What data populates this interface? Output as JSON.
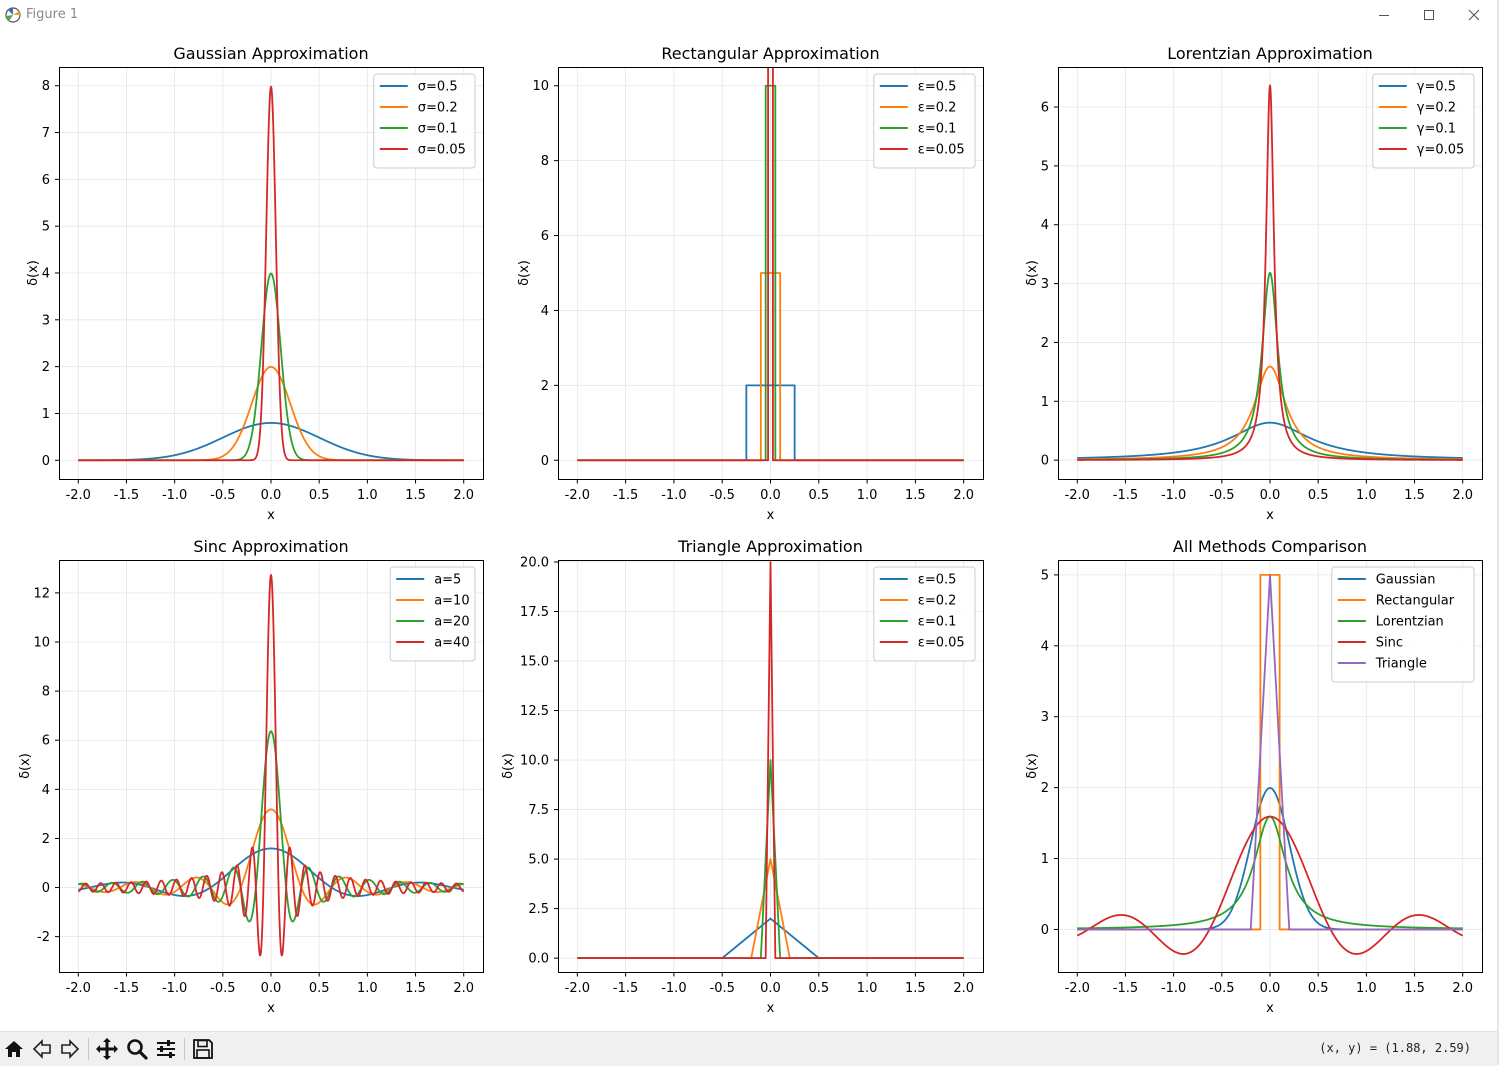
{
  "window": {
    "title": "Figure 1"
  },
  "toolbar": {
    "buttons": [
      {
        "icon": "home-icon"
      },
      {
        "icon": "back-arrow-icon"
      },
      {
        "icon": "forward-arrow-icon"
      },
      {
        "icon": "pan-icon"
      },
      {
        "icon": "zoom-icon"
      },
      {
        "icon": "configure-subplots-icon"
      },
      {
        "icon": "save-icon"
      }
    ],
    "coords": "(x, y) = (1.88, 2.59)"
  },
  "colors": {
    "c0": "#1f77b4",
    "c1": "#ff7f0e",
    "c2": "#2ca02c",
    "c3": "#d62728",
    "c4": "#9467bd"
  },
  "chart_data": [
    {
      "type": "line",
      "title": "Gaussian Approximation",
      "xlabel": "x",
      "ylabel": "δ(x)",
      "xlim": [
        -2.2,
        2.2
      ],
      "ylim": [
        -0.4,
        8.4
      ],
      "xticks": [
        -2.0,
        -1.5,
        -1.0,
        -0.5,
        0.0,
        0.5,
        1.0,
        1.5,
        2.0
      ],
      "xticklabels": [
        "-2.0",
        "-1.5",
        "-1.0",
        "-0.5",
        "0.0",
        "0.5",
        "1.0",
        "1.5",
        "2.0"
      ],
      "yticks": [
        0,
        1,
        2,
        3,
        4,
        5,
        6,
        7,
        8
      ],
      "yticklabels": [
        "0",
        "1",
        "2",
        "3",
        "4",
        "5",
        "6",
        "7",
        "8"
      ],
      "grid": true,
      "legend_loc": "upper right",
      "series": [
        {
          "name": "σ=0.5",
          "func": "gaussian",
          "param": 0.5
        },
        {
          "name": "σ=0.2",
          "func": "gaussian",
          "param": 0.2
        },
        {
          "name": "σ=0.1",
          "func": "gaussian",
          "param": 0.1
        },
        {
          "name": "σ=0.05",
          "func": "gaussian",
          "param": 0.05
        }
      ]
    },
    {
      "type": "line",
      "title": "Rectangular Approximation",
      "xlabel": "x",
      "ylabel": "δ(x)",
      "xlim": [
        -2.2,
        2.2
      ],
      "ylim": [
        -0.5,
        10.5
      ],
      "xticks": [
        -2.0,
        -1.5,
        -1.0,
        -0.5,
        0.0,
        0.5,
        1.0,
        1.5,
        2.0
      ],
      "xticklabels": [
        "-2.0",
        "-1.5",
        "-1.0",
        "-0.5",
        "0.0",
        "0.5",
        "1.0",
        "1.5",
        "2.0"
      ],
      "yticks": [
        0,
        2,
        4,
        6,
        8,
        10
      ],
      "yticklabels": [
        "0",
        "2",
        "4",
        "6",
        "8",
        "10"
      ],
      "grid": true,
      "legend_loc": "upper right",
      "series": [
        {
          "name": "ε=0.5",
          "func": "rect",
          "param": 0.5
        },
        {
          "name": "ε=0.2",
          "func": "rect",
          "param": 0.2
        },
        {
          "name": "ε=0.1",
          "func": "rect",
          "param": 0.1
        },
        {
          "name": "ε=0.05",
          "func": "rect",
          "param": 0.05
        }
      ]
    },
    {
      "type": "line",
      "title": "Lorentzian Approximation",
      "xlabel": "x",
      "ylabel": "δ(x)",
      "xlim": [
        -2.2,
        2.2
      ],
      "ylim": [
        -0.32,
        6.68
      ],
      "xticks": [
        -2.0,
        -1.5,
        -1.0,
        -0.5,
        0.0,
        0.5,
        1.0,
        1.5,
        2.0
      ],
      "xticklabels": [
        "-2.0",
        "-1.5",
        "-1.0",
        "-0.5",
        "0.0",
        "0.5",
        "1.0",
        "1.5",
        "2.0"
      ],
      "yticks": [
        0,
        1,
        2,
        3,
        4,
        5,
        6
      ],
      "yticklabels": [
        "0",
        "1",
        "2",
        "3",
        "4",
        "5",
        "6"
      ],
      "grid": true,
      "legend_loc": "upper right",
      "series": [
        {
          "name": "γ=0.5",
          "func": "lorentz",
          "param": 0.5
        },
        {
          "name": "γ=0.2",
          "func": "lorentz",
          "param": 0.2
        },
        {
          "name": "γ=0.1",
          "func": "lorentz",
          "param": 0.1
        },
        {
          "name": "γ=0.05",
          "func": "lorentz",
          "param": 0.05
        }
      ]
    },
    {
      "type": "line",
      "title": "Sinc Approximation",
      "xlabel": "x",
      "ylabel": "δ(x)",
      "xlim": [
        -2.2,
        2.2
      ],
      "ylim": [
        -3.44,
        13.34
      ],
      "xticks": [
        -2.0,
        -1.5,
        -1.0,
        -0.5,
        0.0,
        0.5,
        1.0,
        1.5,
        2.0
      ],
      "xticklabels": [
        "-2.0",
        "-1.5",
        "-1.0",
        "-0.5",
        "0.0",
        "0.5",
        "1.0",
        "1.5",
        "2.0"
      ],
      "yticks": [
        -2,
        0,
        2,
        4,
        6,
        8,
        10,
        12
      ],
      "yticklabels": [
        "-2",
        "0",
        "2",
        "4",
        "6",
        "8",
        "10",
        "12"
      ],
      "grid": true,
      "legend_loc": "upper right",
      "series": [
        {
          "name": "a=5",
          "func": "sinc",
          "param": 5
        },
        {
          "name": "a=10",
          "func": "sinc",
          "param": 10
        },
        {
          "name": "a=20",
          "func": "sinc",
          "param": 20
        },
        {
          "name": "a=40",
          "func": "sinc",
          "param": 40
        }
      ]
    },
    {
      "type": "line",
      "title": "Triangle Approximation",
      "xlabel": "x",
      "ylabel": "δ(x)",
      "xlim": [
        -2.2,
        2.2
      ],
      "ylim": [
        -0.7,
        20.1
      ],
      "xticks": [
        -2.0,
        -1.5,
        -1.0,
        -0.5,
        0.0,
        0.5,
        1.0,
        1.5,
        2.0
      ],
      "xticklabels": [
        "-2.0",
        "-1.5",
        "-1.0",
        "-0.5",
        "0.0",
        "0.5",
        "1.0",
        "1.5",
        "2.0"
      ],
      "yticks": [
        0,
        2.5,
        5,
        7.5,
        10,
        12.5,
        15,
        17.5,
        20
      ],
      "yticklabels": [
        "0.0",
        "2.5",
        "5.0",
        "7.5",
        "10.0",
        "12.5",
        "15.0",
        "17.5",
        "20.0"
      ],
      "grid": true,
      "legend_loc": "upper right",
      "series": [
        {
          "name": "ε=0.5",
          "func": "tri",
          "param": 0.5
        },
        {
          "name": "ε=0.2",
          "func": "tri",
          "param": 0.2
        },
        {
          "name": "ε=0.1",
          "func": "tri",
          "param": 0.1
        },
        {
          "name": "ε=0.05",
          "func": "tri",
          "param": 0.05
        }
      ]
    },
    {
      "type": "line",
      "title": "All Methods Comparison",
      "xlabel": "x",
      "ylabel": "δ(x)",
      "xlim": [
        -2.2,
        2.2
      ],
      "ylim": [
        -0.6,
        5.21
      ],
      "xticks": [
        -2.0,
        -1.5,
        -1.0,
        -0.5,
        0.0,
        0.5,
        1.0,
        1.5,
        2.0
      ],
      "xticklabels": [
        "-2.0",
        "-1.5",
        "-1.0",
        "-0.5",
        "0.0",
        "0.5",
        "1.0",
        "1.5",
        "2.0"
      ],
      "yticks": [
        0,
        1,
        2,
        3,
        4,
        5
      ],
      "yticklabels": [
        "0",
        "1",
        "2",
        "3",
        "4",
        "5"
      ],
      "grid": true,
      "legend_loc": "upper right",
      "series": [
        {
          "name": "Gaussian",
          "func": "gaussian",
          "param": 0.2
        },
        {
          "name": "Rectangular",
          "func": "rect",
          "param": 0.2
        },
        {
          "name": "Lorentzian",
          "func": "lorentz",
          "param": 0.2
        },
        {
          "name": "Sinc",
          "func": "sinc",
          "param": 5
        },
        {
          "name": "Triangle",
          "func": "tri",
          "param": 0.2
        }
      ]
    }
  ]
}
